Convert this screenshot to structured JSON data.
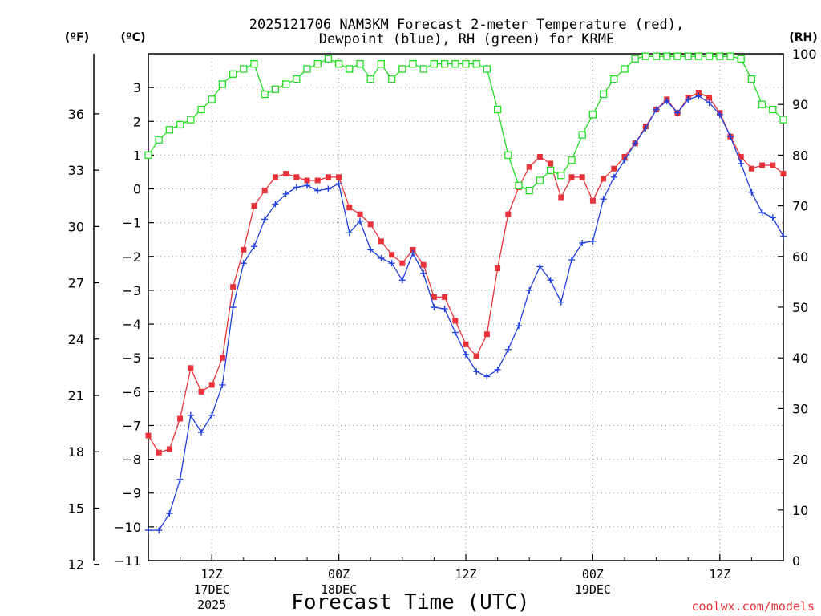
{
  "title_line1": "2025121706 NAM3KM Forecast 2-meter Temperature (red),",
  "title_line2": "Dewpoint (blue), RH (green) for KRME",
  "xlabel": "Forecast Time (UTC)",
  "credit": "coolwx.com/models",
  "unit_f": "(ºF)",
  "unit_c": "(ºC)",
  "unit_rh": "(RH)",
  "chart_data": {
    "type": "line",
    "x_axis": {
      "start": "2025-12-17T06Z",
      "step_hours": 1,
      "n_hours": 61,
      "ticks": [
        {
          "hour": 6,
          "label": "12Z",
          "sub1": "17DEC",
          "sub2": "2025"
        },
        {
          "hour": 18,
          "label": "00Z",
          "sub1": "18DEC",
          "sub2": ""
        },
        {
          "hour": 30,
          "label": "12Z",
          "sub1": "",
          "sub2": ""
        },
        {
          "hour": 42,
          "label": "00Z",
          "sub1": "19DEC",
          "sub2": ""
        },
        {
          "hour": 54,
          "label": "12Z",
          "sub1": "",
          "sub2": ""
        }
      ]
    },
    "y_left_c": {
      "range": [
        -11,
        4
      ],
      "ticks": [
        -11,
        -10,
        -9,
        -8,
        -7,
        -6,
        -5,
        -4,
        -3,
        -2,
        -1,
        0,
        1,
        2,
        3
      ]
    },
    "y_left_f": {
      "ticks": [
        12,
        15,
        18,
        21,
        24,
        27,
        30,
        33,
        36
      ]
    },
    "y_right_rh": {
      "range": [
        0,
        100
      ],
      "ticks": [
        0,
        10,
        20,
        30,
        40,
        50,
        60,
        70,
        80,
        90,
        100
      ]
    },
    "grid": true,
    "series": [
      {
        "name": "Temperature",
        "axis": "c",
        "color": "#e8333a",
        "marker": "filled-square",
        "values": [
          -7.3,
          -7.8,
          -7.7,
          -6.8,
          -5.3,
          -6.0,
          -5.8,
          -5.0,
          -2.9,
          -1.8,
          -0.5,
          -0.05,
          0.35,
          0.45,
          0.35,
          0.25,
          0.25,
          0.35,
          0.35,
          -0.55,
          -0.75,
          -1.05,
          -1.55,
          -1.95,
          -2.2,
          -1.8,
          -2.25,
          -3.2,
          -3.2,
          -3.9,
          -4.6,
          -4.95,
          -4.3,
          -2.35,
          -0.75,
          0.05,
          0.65,
          0.95,
          0.75,
          -0.25,
          0.35,
          0.35,
          -0.35,
          0.3,
          0.6,
          0.95,
          1.35,
          1.85,
          2.35,
          2.65,
          2.25,
          2.7,
          2.85,
          2.7,
          2.25,
          1.55,
          0.95,
          0.6,
          0.7,
          0.7,
          0.45
        ]
      },
      {
        "name": "Dewpoint",
        "axis": "c",
        "color": "#1f3fe0",
        "marker": "plus",
        "values": [
          -10.1,
          -10.1,
          -9.6,
          -8.6,
          -6.7,
          -7.2,
          -6.7,
          -5.8,
          -3.5,
          -2.2,
          -1.7,
          -0.9,
          -0.45,
          -0.15,
          0.05,
          0.1,
          -0.05,
          0.0,
          0.15,
          -1.3,
          -0.95,
          -1.8,
          -2.05,
          -2.2,
          -2.7,
          -1.9,
          -2.5,
          -3.5,
          -3.55,
          -4.25,
          -4.9,
          -5.4,
          -5.55,
          -5.35,
          -4.75,
          -4.05,
          -3.0,
          -2.3,
          -2.7,
          -3.35,
          -2.1,
          -1.6,
          -1.55,
          -0.3,
          0.35,
          0.85,
          1.35,
          1.8,
          2.35,
          2.6,
          2.25,
          2.65,
          2.75,
          2.55,
          2.2,
          1.55,
          0.75,
          -0.1,
          -0.7,
          -0.85,
          -1.4
        ]
      },
      {
        "name": "RH",
        "axis": "rh",
        "color": "#22dd22",
        "marker": "open-square",
        "values": [
          80,
          83,
          85,
          86,
          87,
          89,
          91,
          94,
          96,
          97,
          98,
          92,
          93,
          94,
          95,
          97,
          98,
          99,
          98,
          97,
          98,
          95,
          98,
          95,
          97,
          98,
          97,
          98,
          98,
          98,
          98,
          98,
          97,
          89,
          80,
          74,
          73,
          75,
          77,
          76,
          79,
          84,
          88,
          92,
          95,
          97,
          99,
          99.5,
          99.5,
          99.5,
          99.5,
          99.5,
          99.5,
          99.5,
          99.5,
          99.5,
          99,
          95,
          90,
          89,
          87
        ]
      }
    ]
  }
}
